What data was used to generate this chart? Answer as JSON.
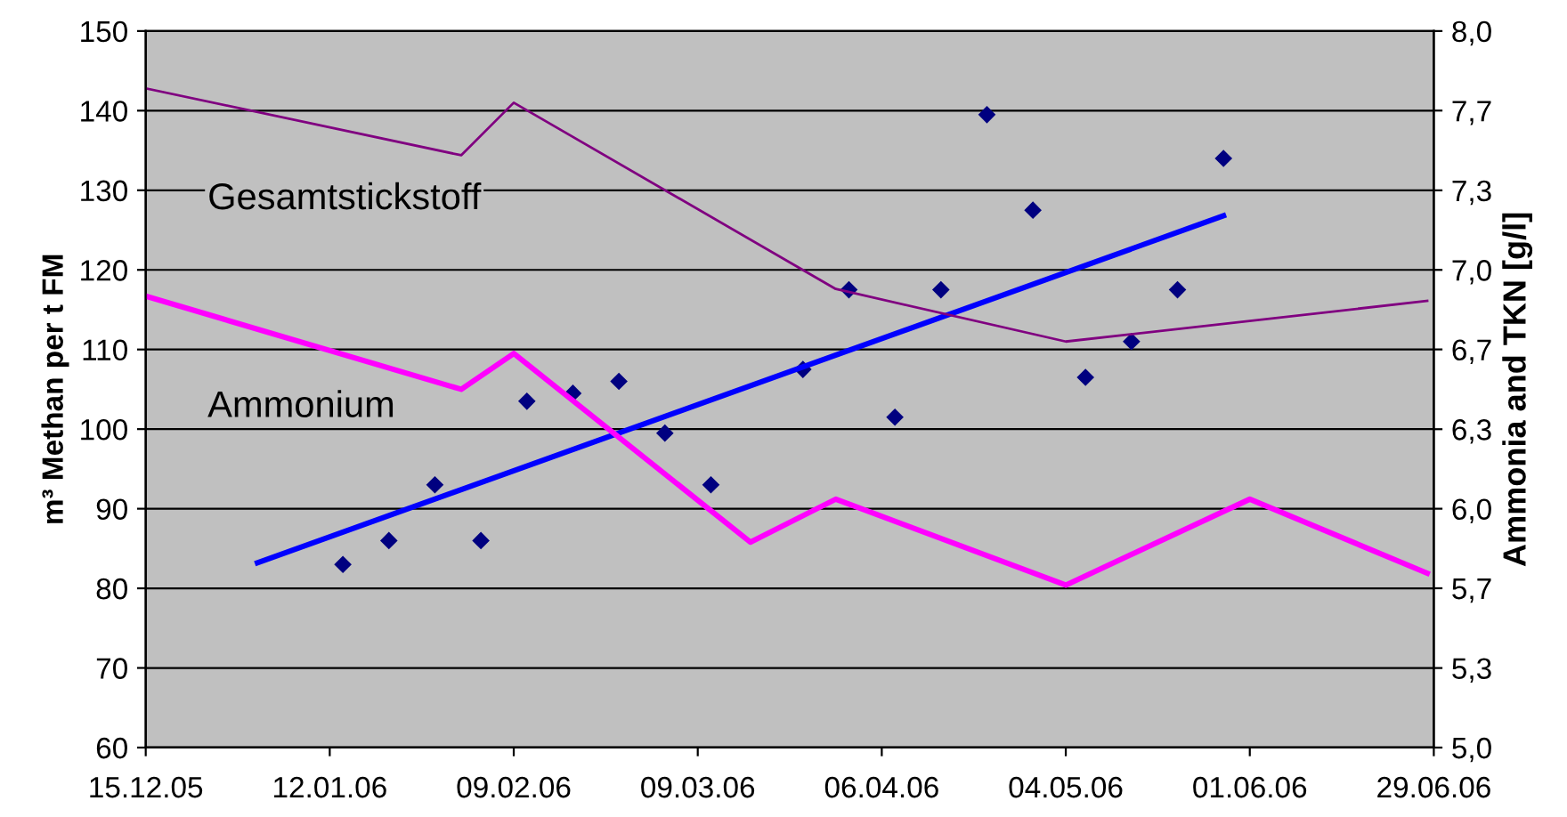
{
  "chart_data": {
    "type": "scatter",
    "ylabel": "m³ Methan per t FM",
    "y2label": "Ammonia and TKN [g/l]",
    "xlim": [
      "2005-12-15",
      "2006-06-29"
    ],
    "xticks": [
      {
        "value": "2005-12-15",
        "label": "15.12.05"
      },
      {
        "value": "2006-01-12",
        "label": "12.01.06"
      },
      {
        "value": "2006-02-09",
        "label": "09.02.06"
      },
      {
        "value": "2006-03-09",
        "label": "09.03.06"
      },
      {
        "value": "2006-04-06",
        "label": "06.04.06"
      },
      {
        "value": "2006-05-04",
        "label": "04.05.06"
      },
      {
        "value": "2006-06-01",
        "label": "01.06.06"
      },
      {
        "value": "2006-06-29",
        "label": "29.06.06"
      }
    ],
    "ylim": [
      60,
      150
    ],
    "yticks": [
      60,
      70,
      80,
      90,
      100,
      110,
      120,
      130,
      140,
      150
    ],
    "y2lim": [
      5,
      8
    ],
    "y2ticks": [
      {
        "value": 5,
        "label": "5,0"
      },
      {
        "value": 5.333,
        "label": "5,3"
      },
      {
        "value": 5.667,
        "label": "5,7"
      },
      {
        "value": 6,
        "label": "6,0"
      },
      {
        "value": 6.333,
        "label": "6,3"
      },
      {
        "value": 6.667,
        "label": "6,7"
      },
      {
        "value": 7,
        "label": "7,0"
      },
      {
        "value": 7.333,
        "label": "7,3"
      },
      {
        "value": 7.667,
        "label": "7,7"
      },
      {
        "value": 8,
        "label": "8,0"
      }
    ],
    "grid": "y",
    "legend": false,
    "series": [
      {
        "marker": "diamond",
        "color": "#000080",
        "x": [
          "2006-01-14",
          "2006-01-21",
          "2006-01-28",
          "2006-02-04",
          "2006-02-11",
          "2006-02-18",
          "2006-02-25",
          "2006-03-04",
          "2006-03-11",
          "2006-03-25",
          "2006-04-01",
          "2006-04-08",
          "2006-04-15",
          "2006-04-22",
          "2006-04-29",
          "2006-05-07",
          "2006-05-14",
          "2006-05-21",
          "2006-05-28"
        ],
        "values": [
          83,
          86,
          93,
          86,
          103.5,
          104.5,
          106,
          99.5,
          93,
          107.5,
          117.5,
          101.5,
          117.5,
          139.5,
          127.5,
          106.5,
          111,
          117.5,
          134
        ]
      },
      {
        "type": "line",
        "color": "#0000ff",
        "x": [
          "2006-01-01",
          "2006-05-28"
        ],
        "values": [
          83.2,
          126.8
        ]
      },
      {
        "type": "line",
        "axis": "y2",
        "name": "Ammonium",
        "color": "#ff00ff",
        "x": [
          "2005-12-15",
          "2006-02-01",
          "2006-02-09",
          "2006-03-17",
          "2006-03-30",
          "2006-05-04",
          "2006-06-01",
          "2006-06-28"
        ],
        "values": [
          6.89,
          6.5,
          6.65,
          5.86,
          6.04,
          5.68,
          6.04,
          5.73
        ]
      },
      {
        "type": "line",
        "axis": "y2",
        "name": "Gesamtstickstoff",
        "color": "#800080",
        "x": [
          "2005-12-15",
          "2006-02-01",
          "2006-02-09",
          "2006-03-30",
          "2006-05-04",
          "2006-06-28"
        ],
        "values": [
          7.76,
          7.48,
          7.7,
          6.92,
          6.7,
          6.87
        ]
      }
    ]
  }
}
